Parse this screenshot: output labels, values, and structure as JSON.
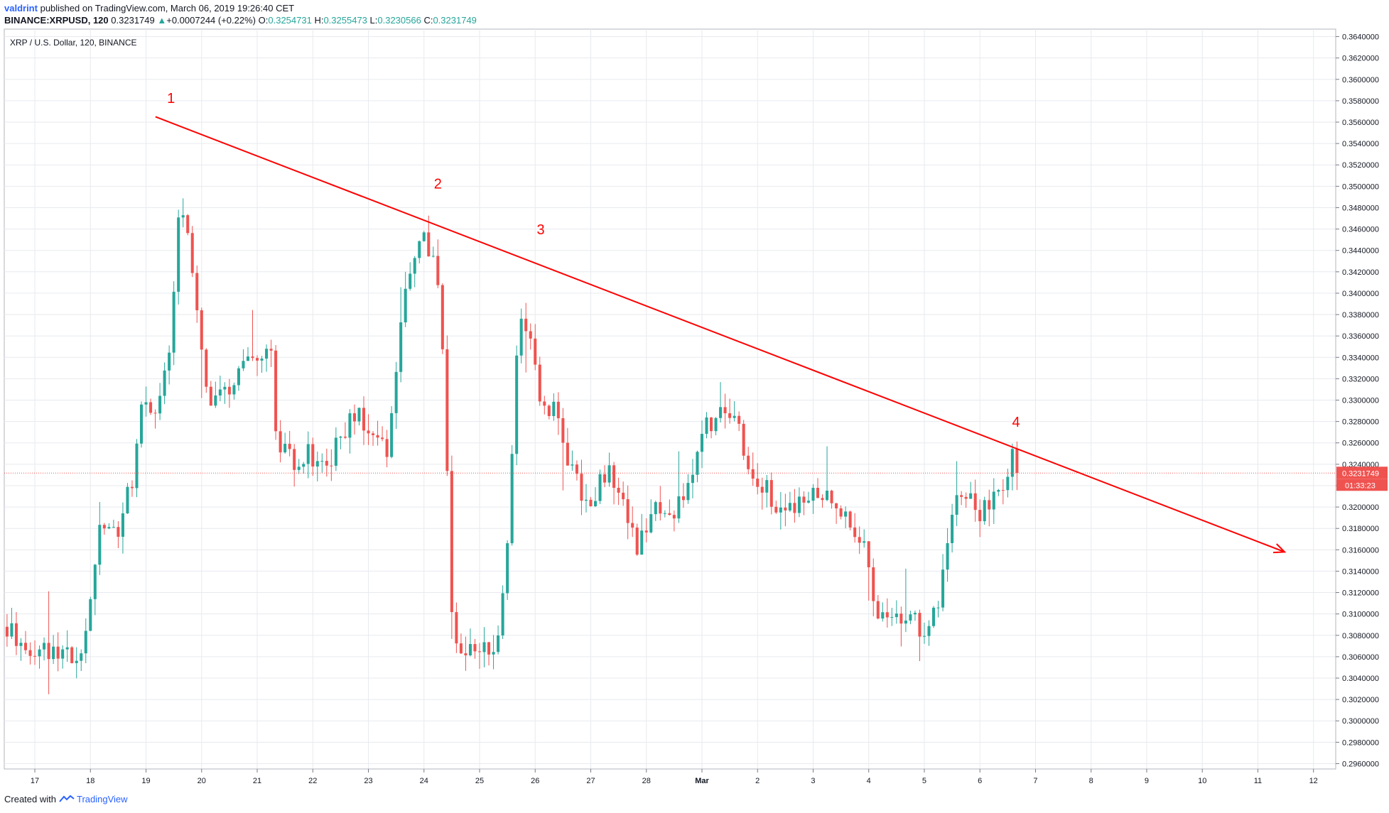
{
  "header": {
    "author": "valdrint",
    "published_text": "published on TradingView.com, March 06, 2019 19:26:40 CET",
    "symbol": "BINANCE:XRPUSD, 120",
    "last_price": "0.3231749",
    "change_arrow": "▲",
    "change_text": "+0.0007244 (+0.22%)",
    "o_label": "O:",
    "o_value": "0.3254731",
    "h_label": "H:",
    "h_value": "0.3255473",
    "l_label": "L:",
    "l_value": "0.3230566",
    "c_label": "C:",
    "c_value": "0.3231749"
  },
  "footer": {
    "created_with": "Created with",
    "brand": "TradingView"
  },
  "colors": {
    "up": "#26a69a",
    "down": "#ef5350",
    "trendline": "#ff0000",
    "grid": "#e8eaef",
    "axis_text": "#131722"
  },
  "chart_data": {
    "type": "candlestick",
    "title": "XRP / U.S. Dollar, 120, BINANCE",
    "current_price_label": "0.3231749",
    "countdown_label": "01:33:23",
    "current_price": 0.3231749,
    "ylim": [
      0.2955,
      0.3647
    ],
    "y_ticks": [
      0.296,
      0.298,
      0.3,
      0.302,
      0.304,
      0.306,
      0.308,
      0.31,
      0.312,
      0.314,
      0.316,
      0.318,
      0.32,
      0.322,
      0.324,
      0.326,
      0.328,
      0.33,
      0.332,
      0.334,
      0.336,
      0.338,
      0.34,
      0.342,
      0.344,
      0.346,
      0.348,
      0.35,
      0.352,
      0.354,
      0.356,
      0.358,
      0.36,
      0.362,
      0.364
    ],
    "y_tick_labels": [
      "0.2960000",
      "0.2980000",
      "0.3000000",
      "0.3020000",
      "0.3040000",
      "0.3060000",
      "0.3080000",
      "0.3100000",
      "0.3120000",
      "0.3140000",
      "0.3160000",
      "0.3180000",
      "0.3200000",
      "0.3220000",
      "0.3240000",
      "0.3260000",
      "0.3280000",
      "0.3300000",
      "0.3320000",
      "0.3340000",
      "0.3360000",
      "0.3380000",
      "0.3400000",
      "0.3420000",
      "0.3440000",
      "0.3460000",
      "0.3480000",
      "0.3500000",
      "0.3520000",
      "0.3540000",
      "0.3560000",
      "0.3580000",
      "0.3600000",
      "0.3620000",
      "0.3640000"
    ],
    "x_range_days": [
      -0.55,
      23.4
    ],
    "x_ticks": [
      {
        "day": 0,
        "label": "17"
      },
      {
        "day": 1,
        "label": "18"
      },
      {
        "day": 2,
        "label": "19"
      },
      {
        "day": 3,
        "label": "20"
      },
      {
        "day": 4,
        "label": "21"
      },
      {
        "day": 5,
        "label": "22"
      },
      {
        "day": 6,
        "label": "23"
      },
      {
        "day": 7,
        "label": "24"
      },
      {
        "day": 8,
        "label": "25"
      },
      {
        "day": 9,
        "label": "26"
      },
      {
        "day": 10,
        "label": "27"
      },
      {
        "day": 11,
        "label": "28"
      },
      {
        "day": 12,
        "label": "Mar"
      },
      {
        "day": 13,
        "label": "2"
      },
      {
        "day": 14,
        "label": "3"
      },
      {
        "day": 15,
        "label": "4"
      },
      {
        "day": 16,
        "label": "5"
      },
      {
        "day": 17,
        "label": "6"
      },
      {
        "day": 18,
        "label": "7"
      },
      {
        "day": 19,
        "label": "8"
      },
      {
        "day": 20,
        "label": "9"
      },
      {
        "day": 21,
        "label": "10"
      },
      {
        "day": 22,
        "label": "11"
      },
      {
        "day": 23,
        "label": "12"
      }
    ],
    "trendline": {
      "start": [
        2.17,
        0.3565
      ],
      "end": [
        22.48,
        0.3158
      ],
      "arrow": true
    },
    "annotations": [
      {
        "text": "1",
        "day": 2.45,
        "price": 0.3578
      },
      {
        "text": "2",
        "day": 7.25,
        "price": 0.3498
      },
      {
        "text": "3",
        "day": 9.1,
        "price": 0.3455
      },
      {
        "text": "4",
        "day": 17.65,
        "price": 0.3275
      }
    ],
    "anchors": [
      [
        -0.5,
        0.3088
      ],
      [
        -0.1,
        0.3072
      ],
      [
        0.3,
        0.3065
      ],
      [
        0.7,
        0.3062
      ],
      [
        0.95,
        0.3075
      ],
      [
        1.2,
        0.3185
      ],
      [
        1.5,
        0.3175
      ],
      [
        1.8,
        0.3225
      ],
      [
        2.0,
        0.3305
      ],
      [
        2.25,
        0.329
      ],
      [
        2.45,
        0.3335
      ],
      [
        2.6,
        0.346
      ],
      [
        2.75,
        0.348
      ],
      [
        2.95,
        0.338
      ],
      [
        3.15,
        0.33
      ],
      [
        3.4,
        0.3308
      ],
      [
        3.7,
        0.332
      ],
      [
        3.9,
        0.3335
      ],
      [
        4.1,
        0.335
      ],
      [
        4.3,
        0.3345
      ],
      [
        4.4,
        0.3255
      ],
      [
        4.7,
        0.3245
      ],
      [
        5.0,
        0.325
      ],
      [
        5.3,
        0.324
      ],
      [
        5.6,
        0.3275
      ],
      [
        5.9,
        0.3285
      ],
      [
        6.15,
        0.327
      ],
      [
        6.4,
        0.3255
      ],
      [
        6.6,
        0.3365
      ],
      [
        6.85,
        0.344
      ],
      [
        7.05,
        0.346
      ],
      [
        7.25,
        0.342
      ],
      [
        7.4,
        0.334
      ],
      [
        7.55,
        0.308
      ],
      [
        7.8,
        0.3065
      ],
      [
        8.1,
        0.307
      ],
      [
        8.35,
        0.3075
      ],
      [
        8.55,
        0.3165
      ],
      [
        8.75,
        0.338
      ],
      [
        9.0,
        0.3345
      ],
      [
        9.2,
        0.3285
      ],
      [
        9.4,
        0.329
      ],
      [
        9.7,
        0.3235
      ],
      [
        10.0,
        0.319
      ],
      [
        10.3,
        0.3235
      ],
      [
        10.5,
        0.3225
      ],
      [
        10.7,
        0.319
      ],
      [
        10.9,
        0.316
      ],
      [
        11.2,
        0.32
      ],
      [
        11.5,
        0.319
      ],
      [
        11.8,
        0.3215
      ],
      [
        12.1,
        0.328
      ],
      [
        12.4,
        0.3285
      ],
      [
        12.7,
        0.328
      ],
      [
        12.9,
        0.323
      ],
      [
        13.2,
        0.3215
      ],
      [
        13.5,
        0.3195
      ],
      [
        13.8,
        0.3205
      ],
      [
        14.1,
        0.321
      ],
      [
        14.4,
        0.3205
      ],
      [
        14.7,
        0.318
      ],
      [
        14.95,
        0.3165
      ],
      [
        15.2,
        0.31
      ],
      [
        15.45,
        0.309
      ],
      [
        15.7,
        0.31
      ],
      [
        16.0,
        0.3085
      ],
      [
        16.3,
        0.3115
      ],
      [
        16.5,
        0.318
      ],
      [
        16.65,
        0.3215
      ],
      [
        16.85,
        0.322
      ],
      [
        17.05,
        0.319
      ],
      [
        17.25,
        0.3205
      ],
      [
        17.45,
        0.3225
      ],
      [
        17.6,
        0.3248
      ],
      [
        17.7,
        0.3232
      ]
    ]
  }
}
